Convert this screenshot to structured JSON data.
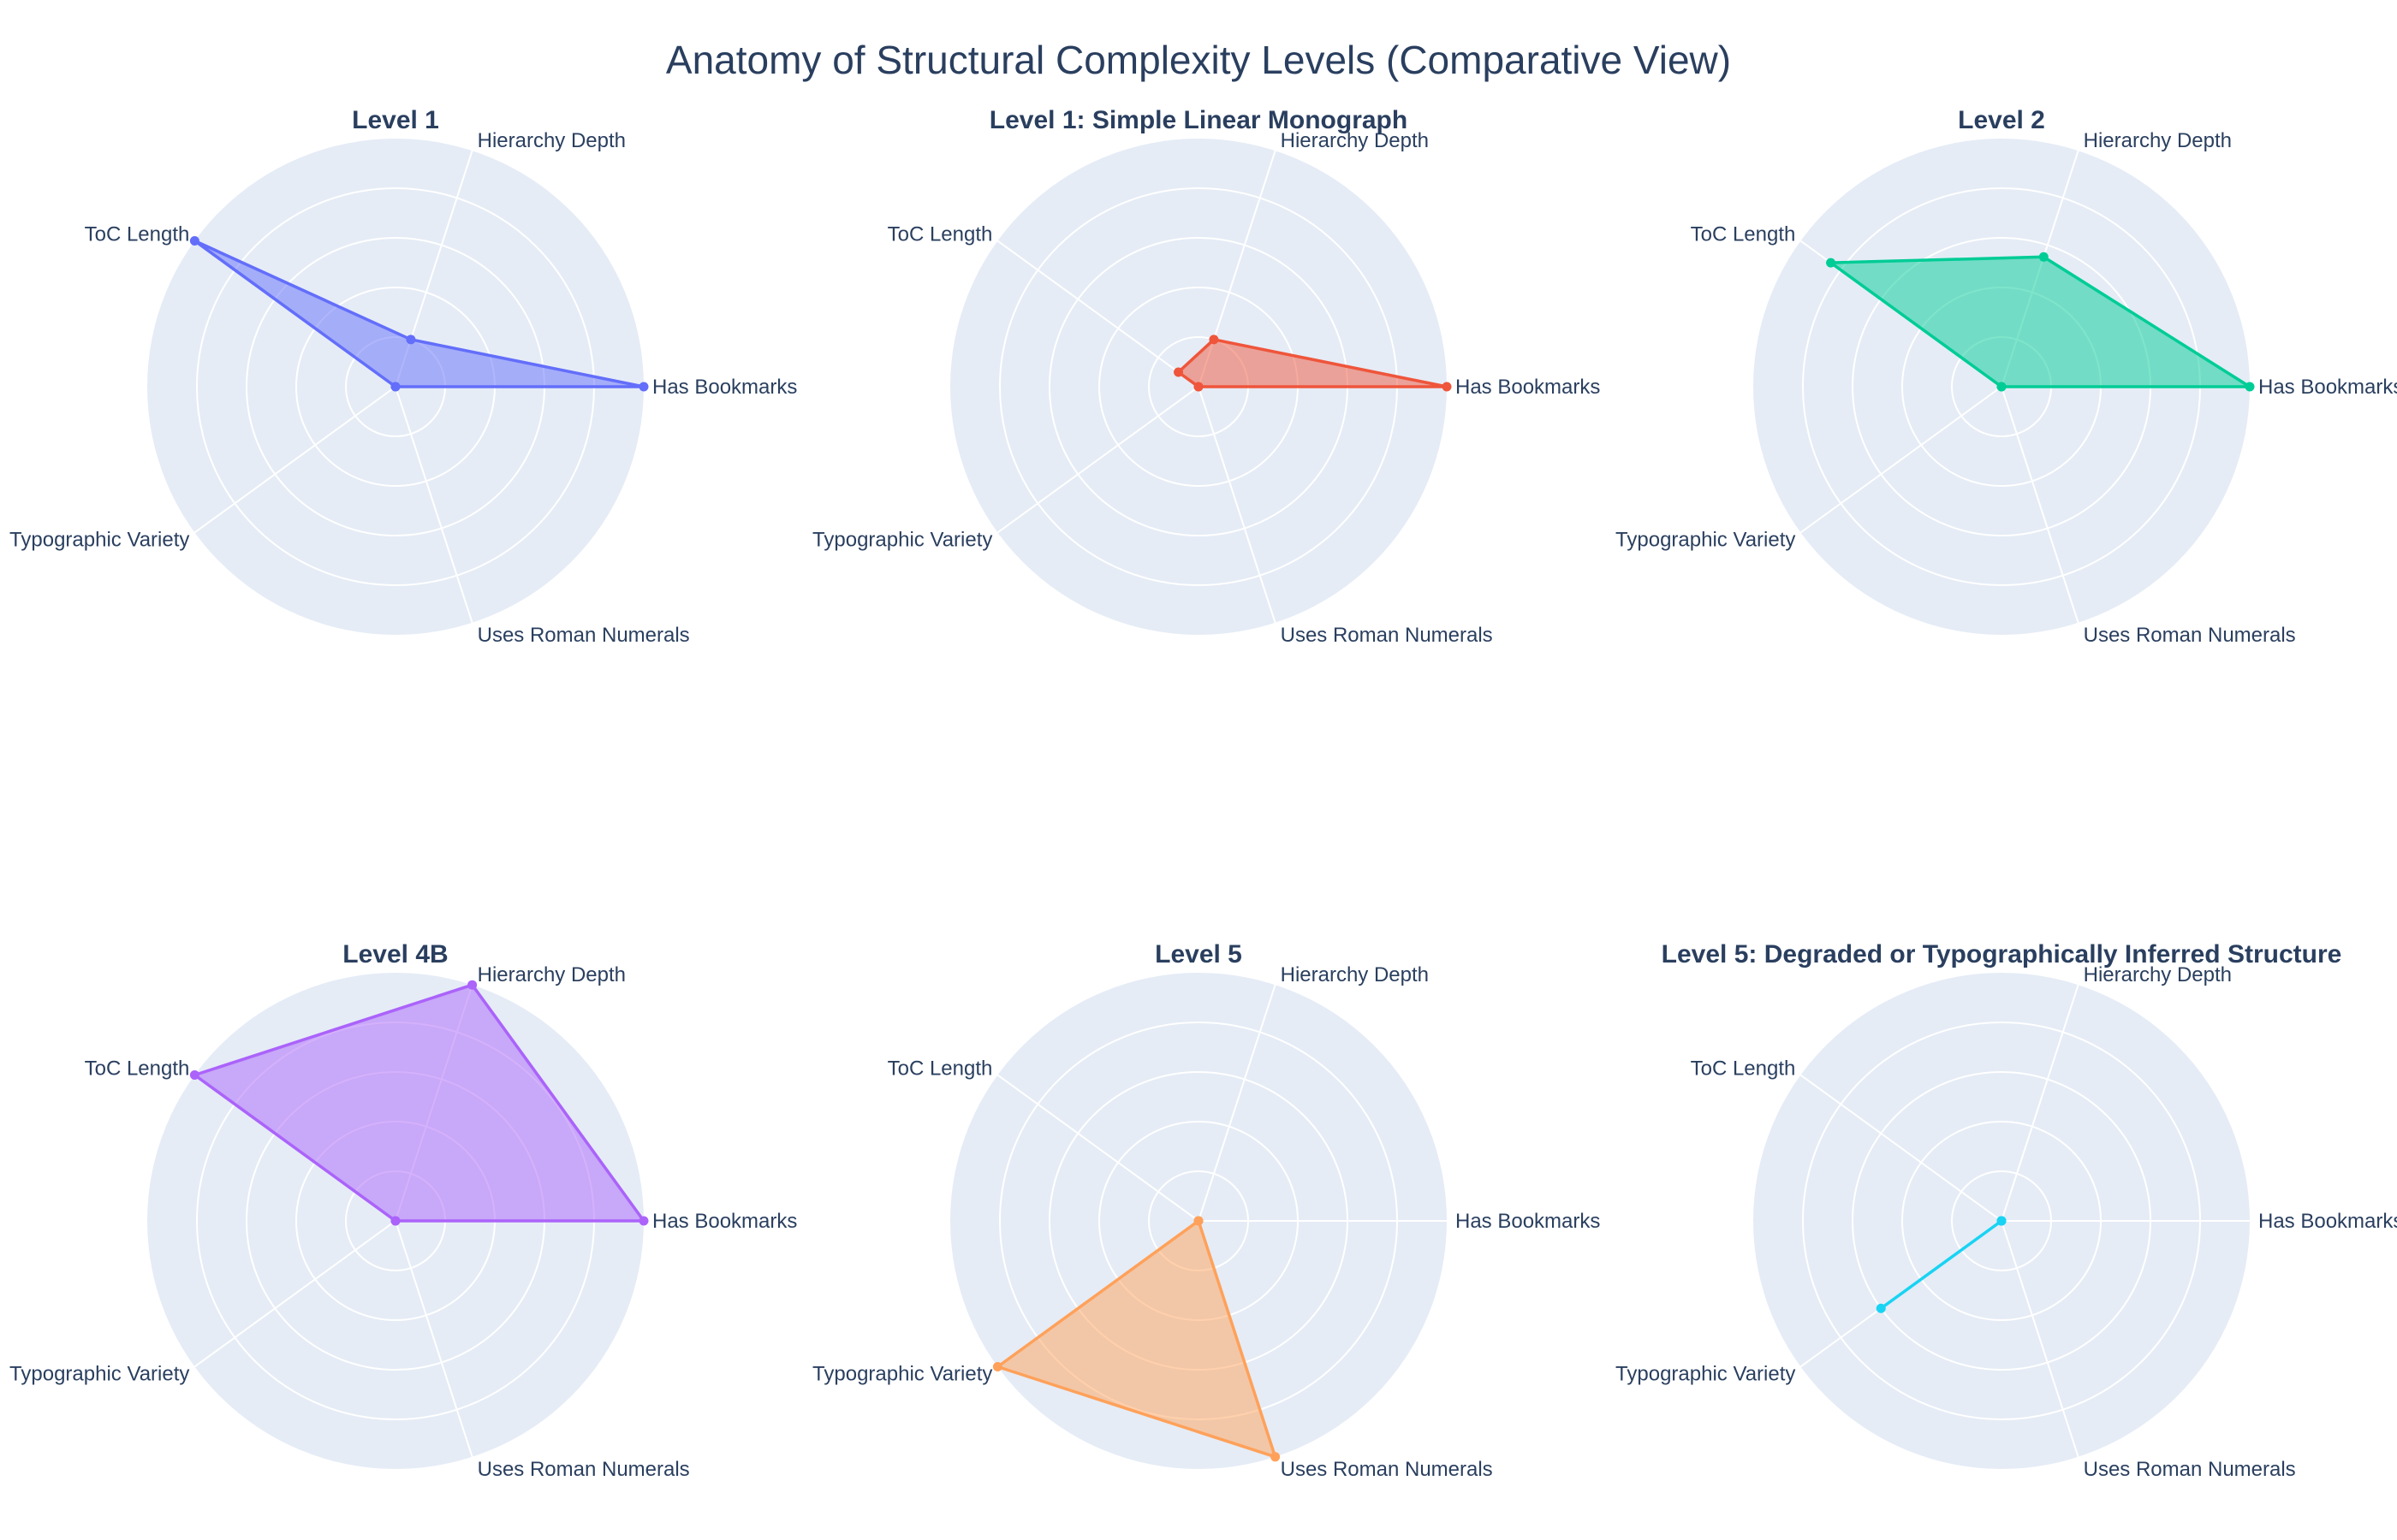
{
  "title": "Anatomy of Structural Complexity Levels (Comparative View)",
  "chart_data": {
    "type": "radar",
    "axes": [
      "Has Bookmarks",
      "Hierarchy Depth",
      "ToC Length",
      "Typographic Variety",
      "Uses Roman Numerals"
    ],
    "radial_range": [
      0,
      1
    ],
    "grid": true,
    "subplots": [
      {
        "title": "Level 1",
        "color": "#636efa",
        "filled": true,
        "values": [
          1.0,
          0.2,
          1.0,
          0.0,
          0.0
        ]
      },
      {
        "title": "Level 1: Simple Linear Monograph",
        "color": "#ef553b",
        "filled": true,
        "values": [
          1.0,
          0.2,
          0.1,
          0.0,
          0.0
        ]
      },
      {
        "title": "Level 2",
        "color": "#00cc96",
        "filled": true,
        "values": [
          1.0,
          0.55,
          0.85,
          0.0,
          0.0
        ]
      },
      {
        "title": "Level 4B",
        "color": "#ab63fa",
        "filled": true,
        "values": [
          1.0,
          1.0,
          1.0,
          0.0,
          0.0
        ]
      },
      {
        "title": "Level 5",
        "color": "#ffa15a",
        "filled": true,
        "values": [
          0.0,
          0.0,
          0.0,
          1.0,
          1.0
        ]
      },
      {
        "title": "Level 5: Degraded or Typographically Inferred Structure",
        "color": "#19d3f3",
        "filled": false,
        "values": [
          0.0,
          0.0,
          0.0,
          0.6,
          0.0
        ]
      }
    ]
  }
}
